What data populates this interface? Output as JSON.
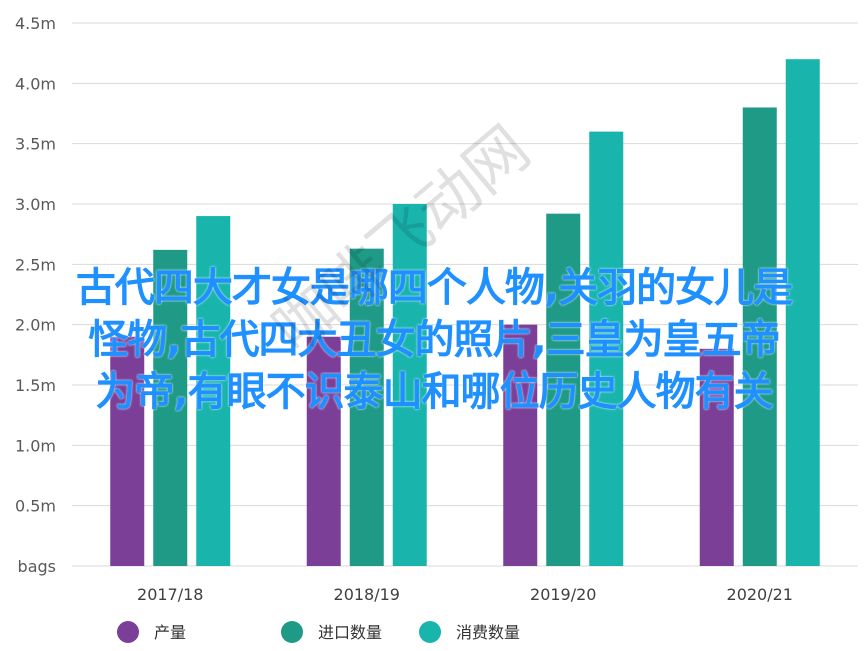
{
  "chart_data": {
    "type": "bar",
    "categories": [
      "2017/18",
      "2018/19",
      "2019/20",
      "2020/21"
    ],
    "series": [
      {
        "name": "产量",
        "values": [
          1.9,
          1.9,
          2.0,
          1.8
        ],
        "color": "#7b3f98"
      },
      {
        "name": "进口数量",
        "values": [
          2.62,
          2.63,
          2.92,
          3.8
        ],
        "color": "#1f9a86"
      },
      {
        "name": "消费数量",
        "values": [
          2.9,
          3.0,
          3.6,
          4.2
        ],
        "color": "#19b5ad"
      }
    ],
    "ylim": [
      0,
      4.5
    ],
    "yticks": [
      {
        "value": 0,
        "label": "bags"
      },
      {
        "value": 0.5,
        "label": "0.5m"
      },
      {
        "value": 1.0,
        "label": "1.0m"
      },
      {
        "value": 1.5,
        "label": "1.5m"
      },
      {
        "value": 2.0,
        "label": "2.0m"
      },
      {
        "value": 2.5,
        "label": "2.5m"
      },
      {
        "value": 3.0,
        "label": "3.0m"
      },
      {
        "value": 3.5,
        "label": "3.5m"
      },
      {
        "value": 4.0,
        "label": "4.0m"
      },
      {
        "value": 4.5,
        "label": "4.5m"
      }
    ],
    "grid": true,
    "legend_position": "bottom"
  },
  "overlay": {
    "line1": "古代四大才女是哪四个人物,关羽的女儿是",
    "line2": "怪物,古代四大丑女的照片,三皇为皇五帝",
    "line3": "为帝,有眼不识泰山和哪位历史人物有关"
  },
  "watermark": "咖啡飞动网"
}
